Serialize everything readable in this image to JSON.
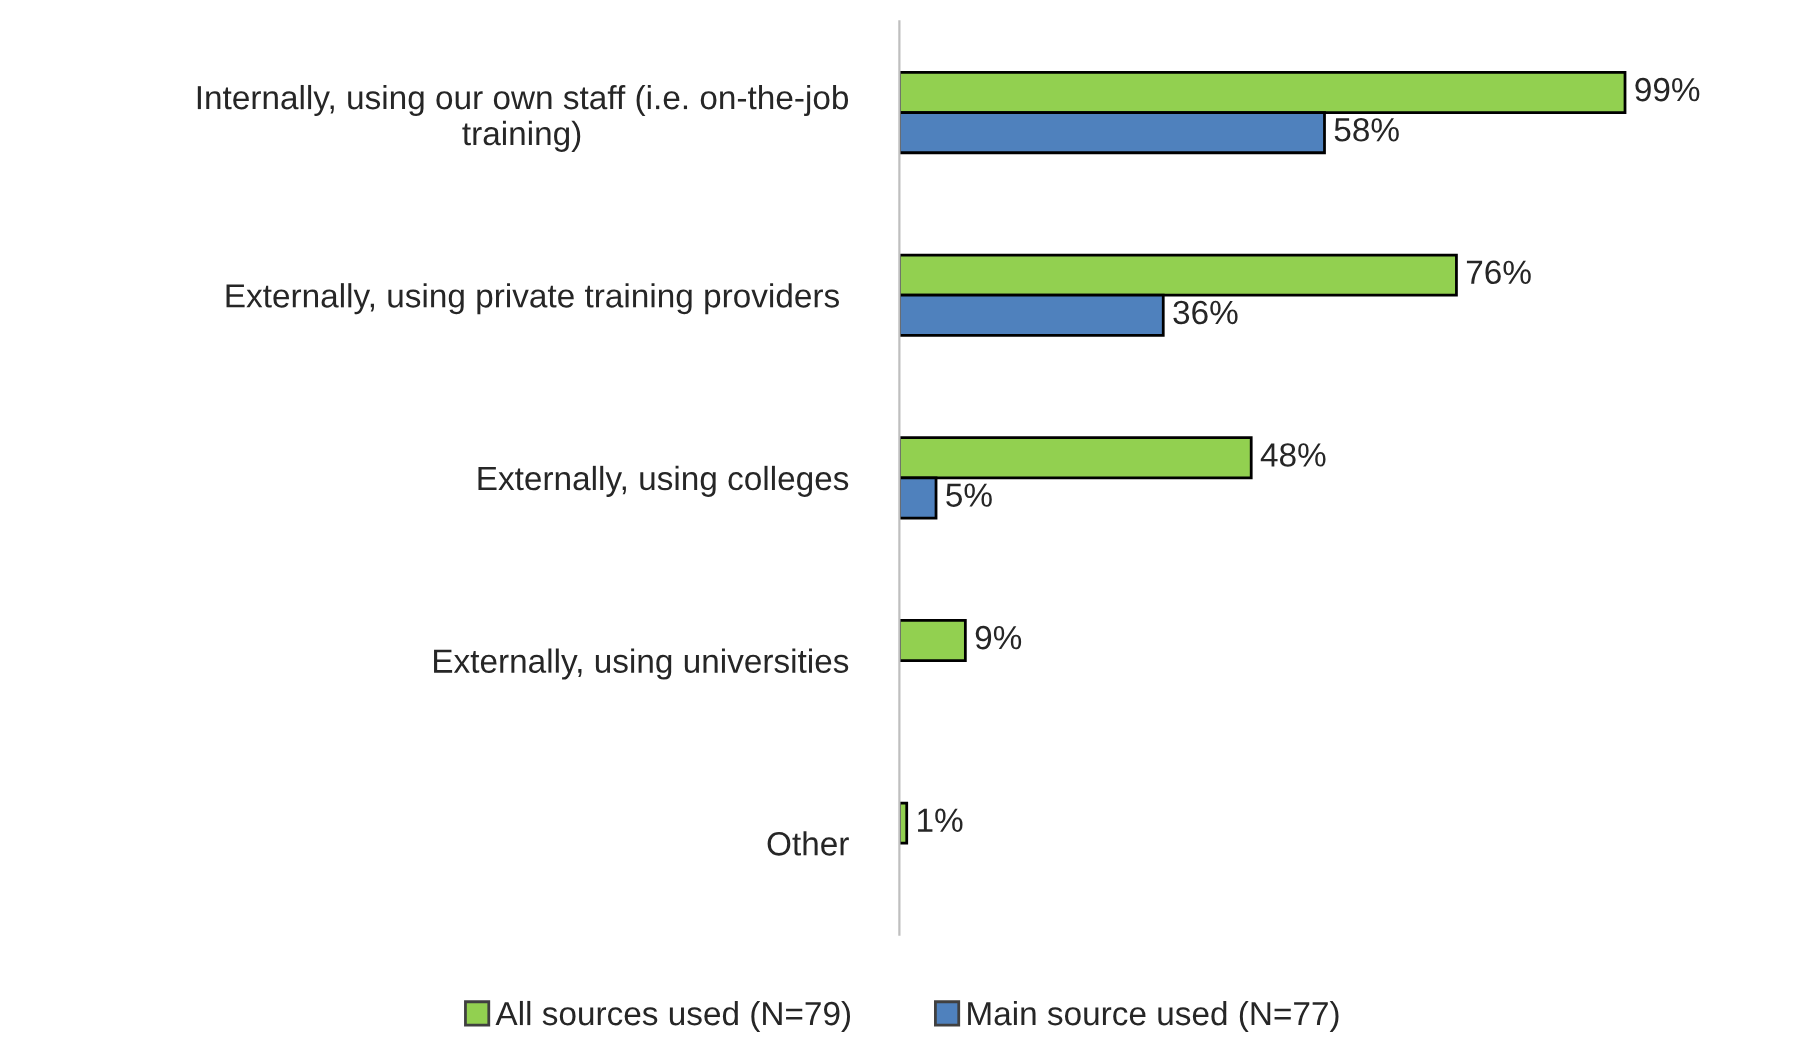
{
  "chart_data": {
    "type": "bar",
    "orientation": "horizontal",
    "categories": [
      "Internally, using our own staff (i.e. on-the-job\ntraining)",
      "Externally, using private training providers ",
      "Externally, using colleges",
      "Externally, using universities",
      "Other"
    ],
    "series": [
      {
        "name": "All sources used (N=79)",
        "color": "#92d050",
        "values": [
          99,
          76,
          48,
          9,
          1
        ],
        "value_labels": [
          "99%",
          "76%",
          "48%",
          "9%",
          "1%"
        ]
      },
      {
        "name": "Main source used (N=77)",
        "color": "#4f81bd",
        "values": [
          58,
          36,
          5,
          null,
          null
        ],
        "value_labels": [
          "58%",
          "36%",
          "5%",
          null,
          null
        ]
      }
    ],
    "legend": "bottom",
    "grid": false
  }
}
